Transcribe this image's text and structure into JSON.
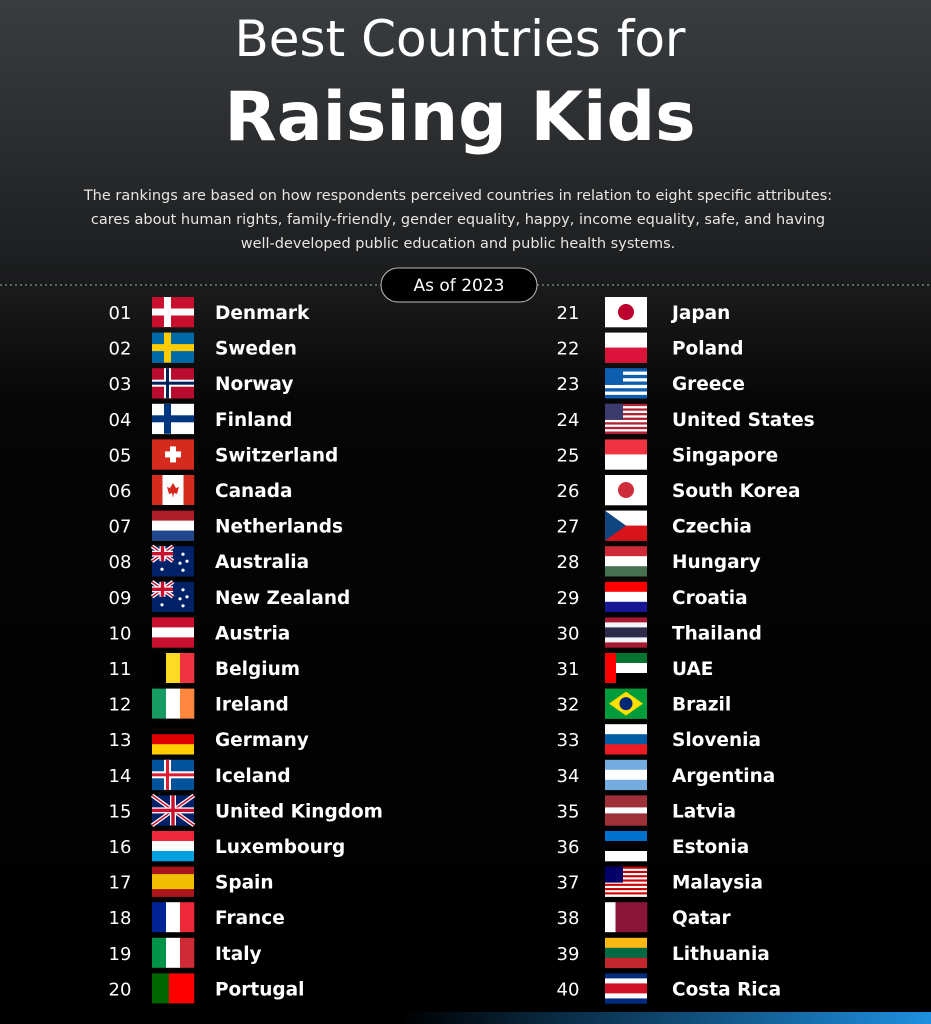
{
  "header": {
    "title_line1": "Best Countries for",
    "title_line2": "Raising Kids",
    "description_lines": [
      "The rankings are based on how respondents perceived countries in relation to eight specific attributes:",
      "cares about human rights, family-friendly, gender equality, happy, income equality, safe, and having",
      "well-developed public education and public health systems."
    ]
  },
  "date_label": "As of 2023",
  "rankings": [
    {
      "rank": "01",
      "country": "Denmark"
    },
    {
      "rank": "02",
      "country": "Sweden"
    },
    {
      "rank": "03",
      "country": "Norway"
    },
    {
      "rank": "04",
      "country": "Finland"
    },
    {
      "rank": "05",
      "country": "Switzerland"
    },
    {
      "rank": "06",
      "country": "Canada"
    },
    {
      "rank": "07",
      "country": "Netherlands"
    },
    {
      "rank": "08",
      "country": "Australia"
    },
    {
      "rank": "09",
      "country": "New Zealand"
    },
    {
      "rank": "10",
      "country": "Austria"
    },
    {
      "rank": "11",
      "country": "Belgium"
    },
    {
      "rank": "12",
      "country": "Ireland"
    },
    {
      "rank": "13",
      "country": "Germany"
    },
    {
      "rank": "14",
      "country": "Iceland"
    },
    {
      "rank": "15",
      "country": "United Kingdom"
    },
    {
      "rank": "16",
      "country": "Luxembourg"
    },
    {
      "rank": "17",
      "country": "Spain"
    },
    {
      "rank": "18",
      "country": "France"
    },
    {
      "rank": "19",
      "country": "Italy"
    },
    {
      "rank": "20",
      "country": "Portugal"
    },
    {
      "rank": "21",
      "country": "Japan"
    },
    {
      "rank": "22",
      "country": "Poland"
    },
    {
      "rank": "23",
      "country": "Greece"
    },
    {
      "rank": "24",
      "country": "United States"
    },
    {
      "rank": "25",
      "country": "Singapore"
    },
    {
      "rank": "26",
      "country": "South Korea"
    },
    {
      "rank": "27",
      "country": "Czechia"
    },
    {
      "rank": "28",
      "country": "Hungary"
    },
    {
      "rank": "29",
      "country": "Croatia"
    },
    {
      "rank": "30",
      "country": "Thailand"
    },
    {
      "rank": "31",
      "country": "UAE"
    },
    {
      "rank": "32",
      "country": "Brazil"
    },
    {
      "rank": "33",
      "country": "Slovenia"
    },
    {
      "rank": "34",
      "country": "Argentina"
    },
    {
      "rank": "35",
      "country": "Latvia"
    },
    {
      "rank": "36",
      "country": "Estonia"
    },
    {
      "rank": "37",
      "country": "Malaysia"
    },
    {
      "rank": "38",
      "country": "Qatar"
    },
    {
      "rank": "39",
      "country": "Lithuania"
    },
    {
      "rank": "40",
      "country": "Costa Rica"
    }
  ]
}
